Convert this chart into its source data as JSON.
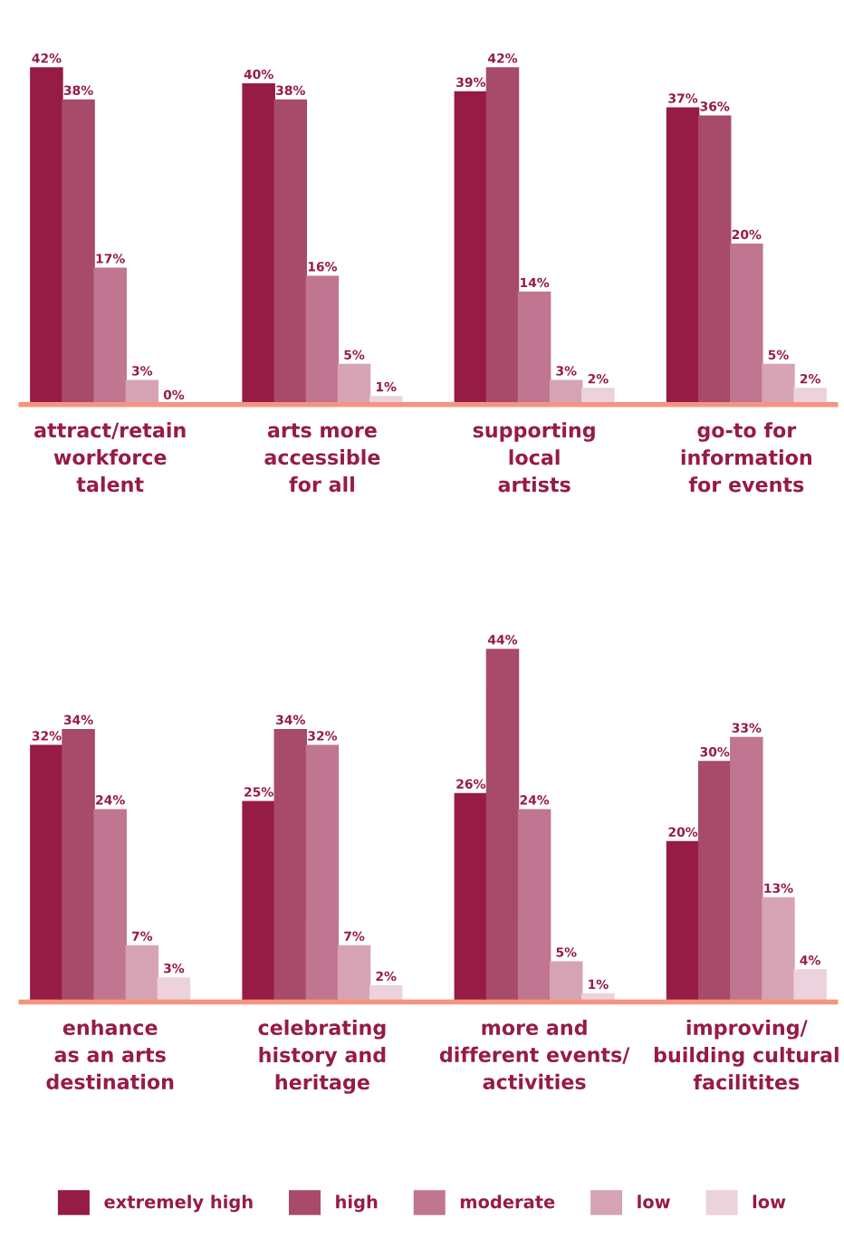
{
  "chart_data": [
    {
      "type": "bar",
      "categories": [
        "attract/retain\nworkforce\ntalent",
        "arts more\naccessible\nfor all",
        "supporting\nlocal\nartists",
        "go-to for\ninformation\nfor events"
      ],
      "data_labels": true,
      "legend": false,
      "tick_labels": "x",
      "grid": false,
      "series": [
        {
          "color": "#961b45",
          "values": [
            42,
            40,
            39,
            37
          ],
          "value_labels": [
            "42%",
            "40%",
            "39%",
            "37%"
          ]
        },
        {
          "color": "#a84a69",
          "values": [
            38,
            38,
            42,
            36
          ],
          "value_labels": [
            "38%",
            "38%",
            "42%",
            "36%"
          ]
        },
        {
          "color": "#c07590",
          "values": [
            17,
            16,
            14,
            20
          ],
          "value_labels": [
            "17%",
            "16%",
            "14%",
            "20%"
          ]
        },
        {
          "color": "#d6a3b5",
          "values": [
            3,
            5,
            3,
            5
          ],
          "value_labels": [
            "3%",
            "5%",
            "3%",
            "5%"
          ]
        },
        {
          "color": "#ecd2dc",
          "values": [
            0,
            1,
            2,
            2
          ],
          "value_labels": [
            "0%",
            "1%",
            "2%",
            "2%"
          ]
        }
      ]
    },
    {
      "type": "bar",
      "categories": [
        "enhance\nas an arts\ndestination",
        "celebrating\nhistory and\nheritage",
        "more and\ndifferent events/\nactivities",
        "improving/\nbuilding cultural\nfacilitites"
      ],
      "data_labels": true,
      "legend": "bottom",
      "tick_labels": "x",
      "grid": false,
      "series": [
        {
          "name": "extremely high",
          "color": "#961b45",
          "values": [
            32,
            25,
            26,
            20
          ],
          "value_labels": [
            "32%",
            "25%",
            "26%",
            "20%"
          ]
        },
        {
          "name": "high",
          "color": "#a84a69",
          "values": [
            34,
            34,
            44,
            30
          ],
          "value_labels": [
            "34%",
            "34%",
            "44%",
            "30%"
          ]
        },
        {
          "name": "moderate",
          "color": "#c07590",
          "values": [
            24,
            32,
            24,
            33
          ],
          "value_labels": [
            "24%",
            "32%",
            "24%",
            "33%"
          ]
        },
        {
          "name": "low",
          "color": "#d6a3b5",
          "values": [
            7,
            7,
            5,
            13
          ],
          "value_labels": [
            "7%",
            "7%",
            "5%",
            "13%"
          ]
        },
        {
          "name": "low",
          "color": "#ecd2dc",
          "values": [
            3,
            2,
            1,
            4
          ],
          "value_labels": [
            "3%",
            "2%",
            "1%",
            "4%"
          ]
        }
      ]
    }
  ]
}
